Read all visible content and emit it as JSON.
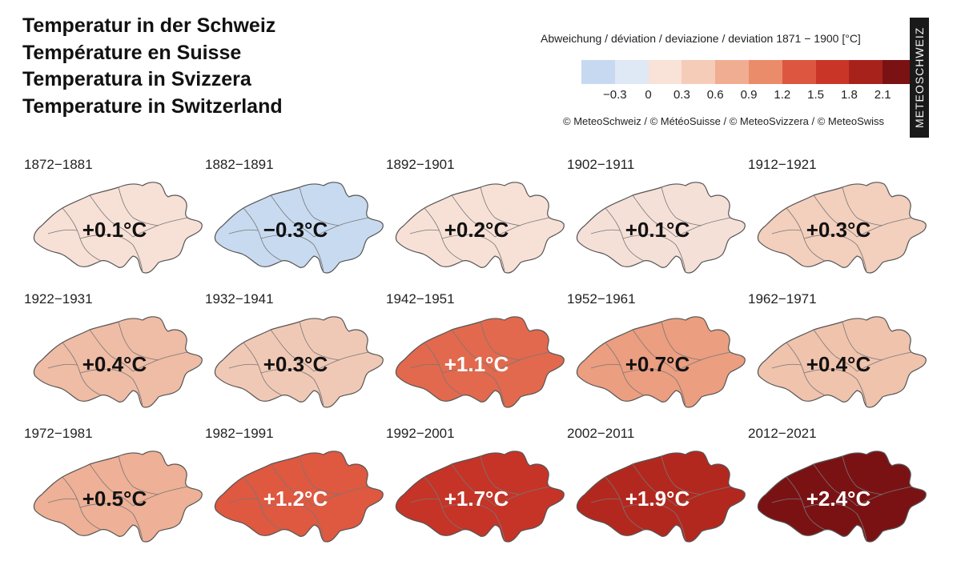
{
  "titles": [
    "Temperatur in der Schweiz",
    "Température en Suisse",
    "Temperatura in Svizzera",
    "Temperature in Switzerland"
  ],
  "legend": {
    "title": "Abweichung / déviation / deviazione / deviation 1871 − 1900 [°C]",
    "colors": [
      "#c6d9f0",
      "#dfe8f5",
      "#f9e2d7",
      "#f5ccb8",
      "#f0ad92",
      "#ea8b6a",
      "#dd5640",
      "#c93628",
      "#a8221c",
      "#7a1113"
    ],
    "tick_labels": [
      "−0.3",
      "0",
      "0.3",
      "0.6",
      "0.9",
      "1.2",
      "1.5",
      "1.8",
      "2.1"
    ]
  },
  "copyright": "© MeteoSchweiz / © MétéoSuisse / © MeteoSvizzera / © MeteoSwiss",
  "watermark": "METEOSCHWEIZ",
  "chart_data": {
    "type": "map",
    "unit": "°C",
    "periods": [
      "1872−1881",
      "1882−1891",
      "1892−1901",
      "1902−1911",
      "1912−1921",
      "1922−1931",
      "1932−1941",
      "1942−1951",
      "1952−1961",
      "1962−1971",
      "1972−1981",
      "1982−1991",
      "1992−2001",
      "2002−2011",
      "2012−2021"
    ],
    "values": [
      0.1,
      -0.3,
      0.2,
      0.1,
      0.3,
      0.4,
      0.3,
      1.1,
      0.7,
      0.4,
      0.5,
      1.2,
      1.7,
      1.9,
      2.4
    ],
    "labels": [
      "+0.1°C",
      "−0.3°C",
      "+0.2°C",
      "+0.1°C",
      "+0.3°C",
      "+0.4°C",
      "+0.3°C",
      "+1.1°C",
      "+0.7°C",
      "+0.4°C",
      "+0.5°C",
      "+1.2°C",
      "+1.7°C",
      "+1.9°C",
      "+2.4°C"
    ],
    "fill_colors": [
      "#f7e0d6",
      "#c8daf0",
      "#f7e1d6",
      "#f5e0d8",
      "#f3cfbd",
      "#efbca5",
      "#f0c9b6",
      "#e2694d",
      "#eb9e80",
      "#f0c3ad",
      "#eeb096",
      "#df5840",
      "#c53427",
      "#b3281e",
      "#7a1214"
    ],
    "label_colors": [
      "#111",
      "#111",
      "#111",
      "#111",
      "#111",
      "#111",
      "#111",
      "#ffffff",
      "#111",
      "#111",
      "#111",
      "#ffffff",
      "#ffffff",
      "#ffffff",
      "#ffffff"
    ]
  }
}
